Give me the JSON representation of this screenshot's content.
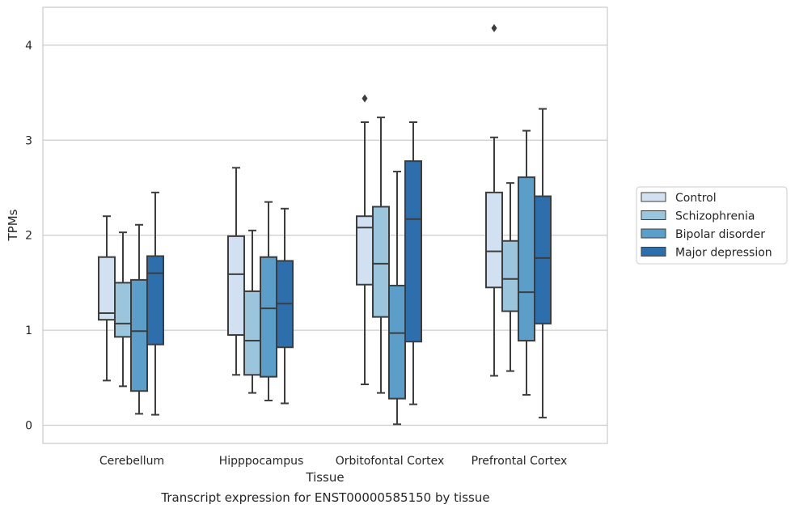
{
  "chart_data": {
    "type": "box",
    "xlabel": "Tissue",
    "ylabel": "TPMs",
    "ylim": [
      -0.19,
      4.4
    ],
    "yticks": [
      0,
      1,
      2,
      3,
      4
    ],
    "grid": "horizontal",
    "legend_position": "right",
    "categories": [
      "Cerebellum",
      "Hipppocampus",
      "Orbitofontal Cortex",
      "Prefrontal Cortex"
    ],
    "series": [
      {
        "name": "Control",
        "color": "#d1e1f1",
        "boxes": [
          {
            "whislo": 0.47,
            "q1": 1.11,
            "med": 1.18,
            "q3": 1.77,
            "whishi": 2.2,
            "fliers": []
          },
          {
            "whislo": 0.53,
            "q1": 0.95,
            "med": 1.59,
            "q3": 1.99,
            "whishi": 2.71,
            "fliers": []
          },
          {
            "whislo": 0.43,
            "q1": 1.48,
            "med": 2.08,
            "q3": 2.2,
            "whishi": 3.19,
            "fliers": [
              3.44
            ]
          },
          {
            "whislo": 0.52,
            "q1": 1.45,
            "med": 1.83,
            "q3": 2.45,
            "whishi": 3.03,
            "fliers": [
              4.18
            ]
          }
        ]
      },
      {
        "name": "Schizophrenia",
        "color": "#9ac5dc",
        "boxes": [
          {
            "whislo": 0.41,
            "q1": 0.93,
            "med": 1.07,
            "q3": 1.5,
            "whishi": 2.03,
            "fliers": []
          },
          {
            "whislo": 0.34,
            "q1": 0.53,
            "med": 0.89,
            "q3": 1.41,
            "whishi": 2.05,
            "fliers": []
          },
          {
            "whislo": 0.34,
            "q1": 1.14,
            "med": 1.7,
            "q3": 2.3,
            "whishi": 3.24,
            "fliers": []
          },
          {
            "whislo": 0.57,
            "q1": 1.2,
            "med": 1.54,
            "q3": 1.94,
            "whishi": 2.55,
            "fliers": []
          }
        ]
      },
      {
        "name": "Bipolar disorder",
        "color": "#5b9ec9",
        "boxes": [
          {
            "whislo": 0.12,
            "q1": 0.36,
            "med": 0.99,
            "q3": 1.53,
            "whishi": 2.11,
            "fliers": []
          },
          {
            "whislo": 0.26,
            "q1": 0.51,
            "med": 1.23,
            "q3": 1.77,
            "whishi": 2.35,
            "fliers": []
          },
          {
            "whislo": 0.01,
            "q1": 0.28,
            "med": 0.97,
            "q3": 1.47,
            "whishi": 2.67,
            "fliers": []
          },
          {
            "whislo": 0.32,
            "q1": 0.89,
            "med": 1.4,
            "q3": 2.61,
            "whishi": 3.1,
            "fliers": []
          }
        ]
      },
      {
        "name": "Major depression",
        "color": "#2d6eac",
        "boxes": [
          {
            "whislo": 0.11,
            "q1": 0.85,
            "med": 1.6,
            "q3": 1.78,
            "whishi": 2.45,
            "fliers": []
          },
          {
            "whislo": 0.23,
            "q1": 0.82,
            "med": 1.28,
            "q3": 1.73,
            "whishi": 2.28,
            "fliers": []
          },
          {
            "whislo": 0.22,
            "q1": 0.88,
            "med": 2.17,
            "q3": 2.78,
            "whishi": 3.19,
            "fliers": []
          },
          {
            "whislo": 0.08,
            "q1": 1.07,
            "med": 1.76,
            "q3": 2.41,
            "whishi": 3.33,
            "fliers": []
          }
        ]
      }
    ]
  },
  "caption": "Transcript expression for ENST00000585150 by tissue"
}
